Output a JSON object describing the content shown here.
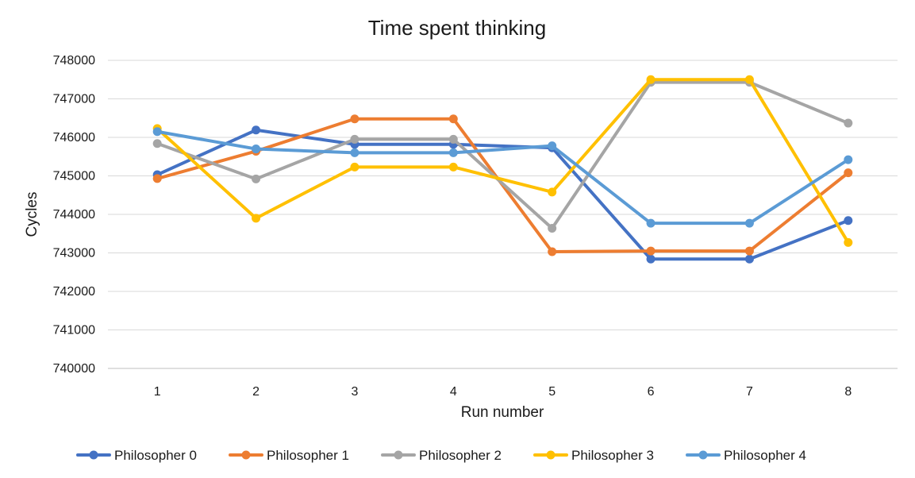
{
  "chart_data": {
    "type": "line",
    "title": "Time spent thinking",
    "xlabel": "Run number",
    "ylabel": "Cycles",
    "categories": [
      "1",
      "2",
      "3",
      "4",
      "5",
      "6",
      "7",
      "8"
    ],
    "ylim": [
      740000,
      748000
    ],
    "yticks": [
      "740000",
      "741000",
      "742000",
      "743000",
      "744000",
      "745000",
      "746000",
      "747000",
      "748000"
    ],
    "grid": true,
    "legend_position": "bottom",
    "series": [
      {
        "name": "Philosopher 0",
        "color": "#4472C4",
        "values": [
          745030,
          746190,
          745820,
          745820,
          745730,
          742840,
          742840,
          743840
        ]
      },
      {
        "name": "Philosopher 1",
        "color": "#ED7D31",
        "values": [
          744930,
          745640,
          746480,
          746480,
          743030,
          743050,
          743050,
          745080
        ]
      },
      {
        "name": "Philosopher 2",
        "color": "#A5A5A5",
        "values": [
          745840,
          744920,
          745950,
          745950,
          743640,
          747430,
          747430,
          746370
        ]
      },
      {
        "name": "Philosopher 3",
        "color": "#FFC000",
        "values": [
          746230,
          743900,
          745230,
          745230,
          744580,
          747500,
          747500,
          743270
        ]
      },
      {
        "name": "Philosopher 4",
        "color": "#5B9BD5",
        "values": [
          746150,
          745700,
          745600,
          745600,
          745780,
          743770,
          743770,
          745420
        ]
      }
    ]
  }
}
